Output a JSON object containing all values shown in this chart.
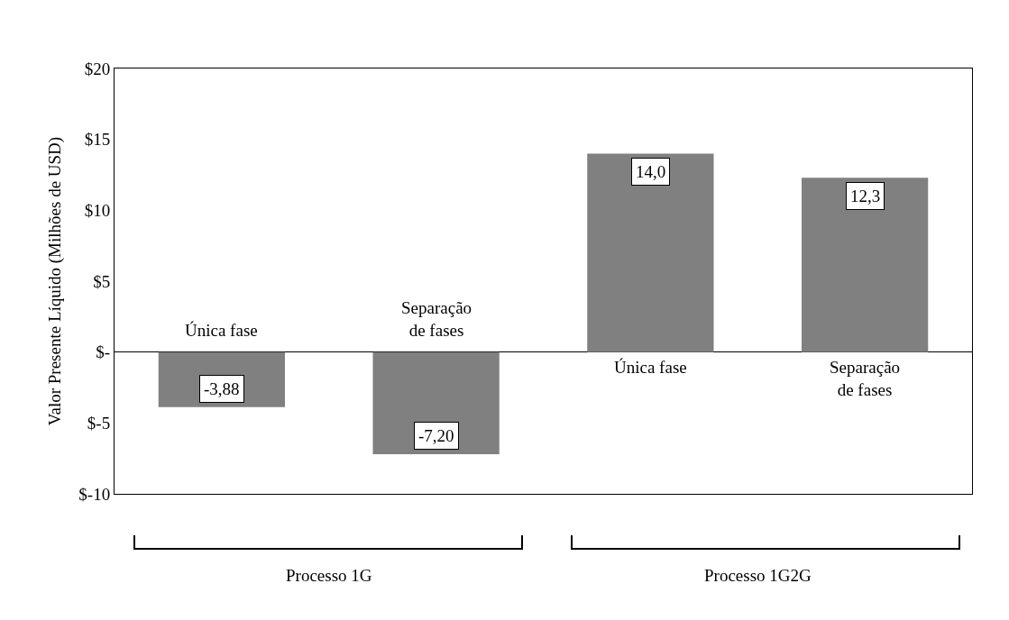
{
  "chart_data": {
    "type": "bar",
    "ylabel": "Valor Presente Líquido (Milhões de USD)",
    "categories": [
      "Única fase",
      "Separação\nde fases",
      "Única fase",
      "Separação\nde fases"
    ],
    "values": [
      -3.88,
      -7.2,
      14.0,
      12.3
    ],
    "value_labels": [
      "-3,88",
      "-7,20",
      "14,0",
      "12,3"
    ],
    "color": "#808080",
    "ylim": [
      -10,
      20
    ],
    "yticks": [
      {
        "value": -10,
        "label": "$-10"
      },
      {
        "value": -5,
        "label": "$-5"
      },
      {
        "value": 0,
        "label": "$-"
      },
      {
        "value": 5,
        "label": "$5"
      },
      {
        "value": 10,
        "label": "$10"
      },
      {
        "value": 15,
        "label": "$15"
      },
      {
        "value": 20,
        "label": "$20"
      }
    ],
    "annotations": [
      "Processo 1G",
      "Processo 1G2G"
    ],
    "grid": false,
    "legend": false
  }
}
